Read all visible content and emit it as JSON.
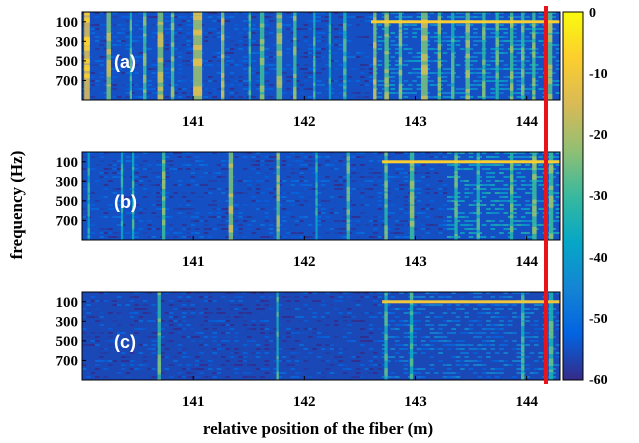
{
  "chart_data": [
    {
      "type": "heatmap",
      "panel": "(a)",
      "xlim": [
        140.0,
        144.3
      ],
      "ylim": [
        0,
        900
      ],
      "x_ticks": [
        141,
        142,
        143,
        144
      ],
      "y_ticks": [
        100,
        300,
        500,
        700
      ],
      "clim": [
        -60,
        0
      ],
      "background_level": -55,
      "vertical_bands": [
        {
          "x": 140.02,
          "width": 0.05,
          "level": -15
        },
        {
          "x": 140.22,
          "width": 0.04,
          "level": -25
        },
        {
          "x": 140.43,
          "width": 0.02,
          "level": -35
        },
        {
          "x": 140.55,
          "width": 0.03,
          "level": -30
        },
        {
          "x": 140.68,
          "width": 0.05,
          "level": -25
        },
        {
          "x": 140.8,
          "width": 0.03,
          "level": -30
        },
        {
          "x": 141.0,
          "width": 0.08,
          "level": -22
        },
        {
          "x": 141.25,
          "width": 0.03,
          "level": -25
        },
        {
          "x": 141.5,
          "width": 0.02,
          "level": -35
        },
        {
          "x": 141.6,
          "width": 0.04,
          "level": -30
        },
        {
          "x": 141.75,
          "width": 0.05,
          "level": -28
        },
        {
          "x": 141.9,
          "width": 0.03,
          "level": -30
        },
        {
          "x": 142.08,
          "width": 0.02,
          "level": -35
        },
        {
          "x": 142.22,
          "width": 0.02,
          "level": -38
        },
        {
          "x": 142.35,
          "width": 0.03,
          "level": -35
        },
        {
          "x": 142.62,
          "width": 0.03,
          "level": -25
        },
        {
          "x": 142.72,
          "width": 0.04,
          "level": -28
        },
        {
          "x": 142.85,
          "width": 0.03,
          "level": -30
        },
        {
          "x": 143.05,
          "width": 0.06,
          "level": -25
        },
        {
          "x": 143.2,
          "width": 0.03,
          "level": -30
        },
        {
          "x": 143.32,
          "width": 0.03,
          "level": -35
        },
        {
          "x": 143.45,
          "width": 0.04,
          "level": -28
        },
        {
          "x": 143.6,
          "width": 0.03,
          "level": -32
        },
        {
          "x": 143.72,
          "width": 0.03,
          "level": -33
        },
        {
          "x": 143.85,
          "width": 0.03,
          "level": -30
        },
        {
          "x": 143.95,
          "width": 0.03,
          "level": -32
        },
        {
          "x": 144.05,
          "width": 0.03,
          "level": -30
        },
        {
          "x": 144.18,
          "width": 0.05,
          "level": -28
        }
      ],
      "horizontal_line": {
        "frequency": 100,
        "x_start": 142.6,
        "x_end": 144.3,
        "level": -8
      },
      "dense_region": {
        "x_start": 142.6,
        "x_end": 144.3,
        "level": -42
      }
    },
    {
      "type": "heatmap",
      "panel": "(b)",
      "xlim": [
        140.0,
        144.3
      ],
      "ylim": [
        0,
        900
      ],
      "x_ticks": [
        141,
        142,
        143,
        144
      ],
      "y_ticks": [
        100,
        300,
        500,
        700
      ],
      "clim": [
        -60,
        0
      ],
      "background_level": -55,
      "vertical_bands": [
        {
          "x": 140.05,
          "width": 0.02,
          "level": -38
        },
        {
          "x": 140.35,
          "width": 0.02,
          "level": -38
        },
        {
          "x": 140.45,
          "width": 0.02,
          "level": -36
        },
        {
          "x": 140.72,
          "width": 0.03,
          "level": -30
        },
        {
          "x": 141.32,
          "width": 0.04,
          "level": -25
        },
        {
          "x": 141.75,
          "width": 0.03,
          "level": -28
        },
        {
          "x": 142.1,
          "width": 0.02,
          "level": -38
        },
        {
          "x": 142.38,
          "width": 0.03,
          "level": -32
        },
        {
          "x": 142.72,
          "width": 0.03,
          "level": -32
        },
        {
          "x": 142.95,
          "width": 0.04,
          "level": -30
        },
        {
          "x": 143.35,
          "width": 0.03,
          "level": -33
        },
        {
          "x": 143.55,
          "width": 0.03,
          "level": -35
        },
        {
          "x": 143.85,
          "width": 0.03,
          "level": -33
        },
        {
          "x": 144.05,
          "width": 0.04,
          "level": -30
        },
        {
          "x": 144.2,
          "width": 0.04,
          "level": -30
        }
      ],
      "horizontal_line": {
        "frequency": 100,
        "x_start": 142.7,
        "x_end": 144.3,
        "level": -8
      },
      "dense_region": {
        "x_start": 143.3,
        "x_end": 144.3,
        "level": -38
      }
    },
    {
      "type": "heatmap",
      "panel": "(c)",
      "xlim": [
        140.0,
        144.3
      ],
      "ylim": [
        0,
        900
      ],
      "x_ticks": [
        141,
        142,
        143,
        144
      ],
      "y_ticks": [
        100,
        300,
        500,
        700
      ],
      "clim": [
        -60,
        0
      ],
      "background_level": -56,
      "vertical_bands": [
        {
          "x": 140.68,
          "width": 0.03,
          "level": -32
        },
        {
          "x": 141.75,
          "width": 0.02,
          "level": -35
        },
        {
          "x": 142.72,
          "width": 0.03,
          "level": -35
        },
        {
          "x": 142.95,
          "width": 0.03,
          "level": -36
        },
        {
          "x": 143.95,
          "width": 0.03,
          "level": -36
        },
        {
          "x": 144.2,
          "width": 0.04,
          "level": -34
        }
      ],
      "horizontal_line": {
        "frequency": 100,
        "x_start": 142.7,
        "x_end": 144.3,
        "level": -10
      },
      "dense_region": {
        "x_start": 142.7,
        "x_end": 144.3,
        "level": -48
      }
    }
  ],
  "panel_labels": [
    "(a)",
    "(b)",
    "(c)"
  ],
  "xlabel": "relative position of the fiber (m)",
  "ylabel": "frequency (Hz)",
  "colorbar": {
    "ticks": [
      "0",
      "-10",
      "-20",
      "-30",
      "-40",
      "-50",
      "-60"
    ],
    "tick_values": [
      0,
      -10,
      -20,
      -30,
      -40,
      -50,
      -60
    ],
    "colormap": "parula"
  },
  "x_tick_labels": [
    "141",
    "142",
    "143",
    "144"
  ],
  "y_tick_labels": [
    "100",
    "300",
    "500",
    "700"
  ],
  "marker_line": {
    "x": 144.15,
    "color": "#e8141c"
  }
}
